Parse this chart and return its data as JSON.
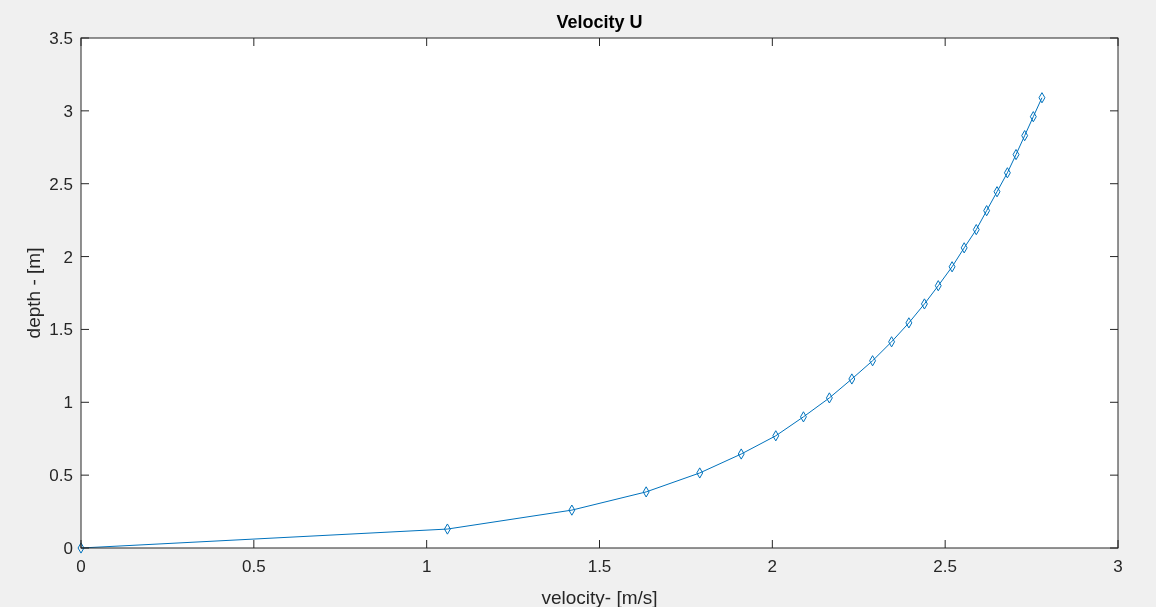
{
  "chart_data": {
    "type": "line",
    "title": "Velocity U",
    "xlabel": "velocity- [m/s]",
    "ylabel": "depth - [m]",
    "xlim": [
      0,
      3
    ],
    "xticks": [
      0,
      0.5,
      1,
      1.5,
      2,
      2.5,
      3
    ],
    "ylim": [
      0,
      3.5
    ],
    "yticks": [
      0,
      0.5,
      1,
      1.5,
      2,
      2.5,
      3,
      3.5
    ],
    "grid": false,
    "marker": "diamond",
    "line_style": "solid",
    "series": [
      {
        "color": "#0072bd",
        "x": [
          0,
          1.06,
          1.42,
          1.635,
          1.79,
          1.91,
          2.01,
          2.09,
          2.165,
          2.23,
          2.29,
          2.345,
          2.395,
          2.44,
          2.48,
          2.52,
          2.555,
          2.59,
          2.62,
          2.65,
          2.68,
          2.705,
          2.73,
          2.755,
          2.78
        ],
        "values": [
          0,
          0.13,
          0.26,
          0.385,
          0.515,
          0.645,
          0.77,
          0.9,
          1.03,
          1.16,
          1.285,
          1.415,
          1.545,
          1.675,
          1.8,
          1.93,
          2.06,
          2.185,
          2.315,
          2.445,
          2.575,
          2.7,
          2.83,
          2.96,
          3.09
        ]
      }
    ]
  }
}
